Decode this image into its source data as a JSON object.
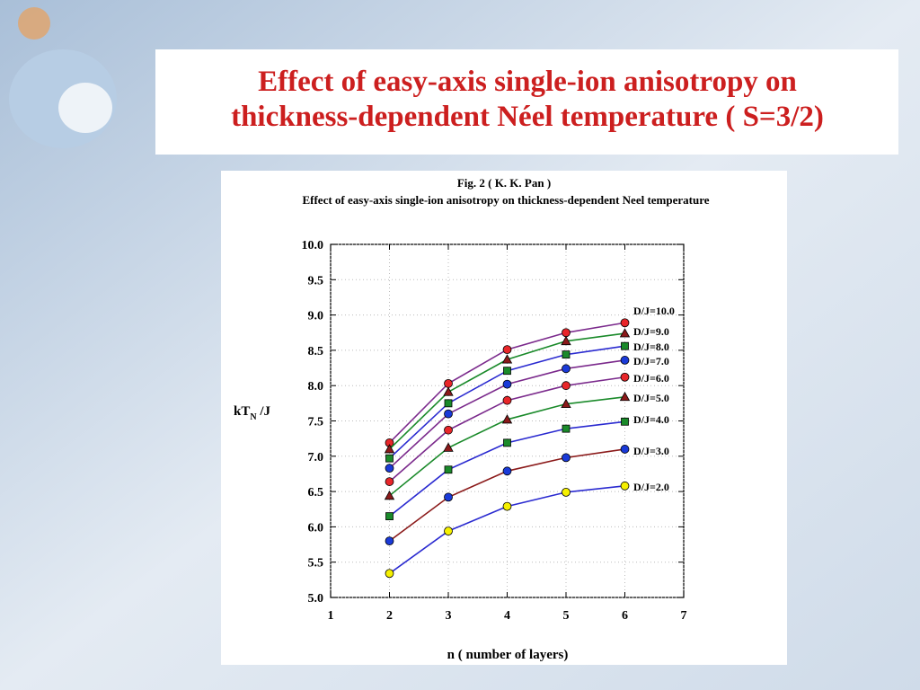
{
  "slide_title": [
    "Effect of easy-axis single-ion anisotropy on",
    "thickness-dependent  Néel temperature ( S=3/2)"
  ],
  "chart_data": {
    "type": "line",
    "title": "Fig. 2 ( K. K. Pan )",
    "subtitle": "Effect of easy-axis single-ion anisotropy on thickness-dependent  Neel  temperature",
    "xlabel": "n ( number of layers)",
    "ylabel": "kT",
    "ylabel_sub": "N",
    "ylabel_suffix": " /J",
    "x": [
      2,
      3,
      4,
      5,
      6
    ],
    "xlim": [
      1,
      7
    ],
    "xticks": [
      1,
      2,
      3,
      4,
      5,
      6,
      7
    ],
    "ylim": [
      5,
      10
    ],
    "yticks": [
      {
        "value": 5,
        "label": "5.0"
      },
      {
        "value": 5.5,
        "label": "5.5"
      },
      {
        "value": 6,
        "label": "6.0"
      },
      {
        "value": 6.5,
        "label": "6.5"
      },
      {
        "value": 7,
        "label": "7.0"
      },
      {
        "value": 7.5,
        "label": "7.5"
      },
      {
        "value": 8,
        "label": "8.0"
      },
      {
        "value": 8.5,
        "label": "8.5"
      },
      {
        "value": 9,
        "label": "9.0"
      },
      {
        "value": 9.5,
        "label": "9.5"
      },
      {
        "value": 10,
        "label": "10.0"
      }
    ],
    "grid": true,
    "series": [
      {
        "name": "D/J=10.0",
        "color": "#e8262a",
        "line_color": "#7b2a8c",
        "marker": "circle",
        "values": [
          7.19,
          8.03,
          8.51,
          8.75,
          8.89
        ]
      },
      {
        "name": "D/J=9.0",
        "color": "#8b1a1a",
        "line_color": "#1a8a2a",
        "marker": "triangle",
        "values": [
          7.1,
          7.91,
          8.37,
          8.63,
          8.74
        ]
      },
      {
        "name": "D/J=8.0",
        "color": "#1a8a2a",
        "line_color": "#2a2ad0",
        "marker": "square",
        "values": [
          6.97,
          7.75,
          8.21,
          8.44,
          8.56
        ]
      },
      {
        "name": "D/J=7.0",
        "color": "#1a3ad8",
        "line_color": "#7b2a8c",
        "marker": "circle",
        "values": [
          6.83,
          7.6,
          8.02,
          8.24,
          8.36
        ]
      },
      {
        "name": "D/J=6.0",
        "color": "#e8262a",
        "line_color": "#7b2a8c",
        "marker": "circle",
        "values": [
          6.64,
          7.37,
          7.79,
          8.0,
          8.12
        ]
      },
      {
        "name": "D/J=5.0",
        "color": "#8b1a1a",
        "line_color": "#1a8a2a",
        "marker": "triangle",
        "values": [
          6.44,
          7.12,
          7.52,
          7.74,
          7.84
        ]
      },
      {
        "name": "D/J=4.0",
        "color": "#1a8a2a",
        "line_color": "#2a2ad0",
        "marker": "square",
        "values": [
          6.15,
          6.81,
          7.19,
          7.39,
          7.49
        ]
      },
      {
        "name": "D/J=3.0",
        "color": "#1a3ad8",
        "line_color": "#8b1a1a",
        "marker": "circle",
        "values": [
          5.8,
          6.42,
          6.79,
          6.98,
          7.1
        ]
      },
      {
        "name": "D/J=2.0",
        "color": "#f5f000",
        "line_color": "#2a2ad0",
        "marker": "circle",
        "values": [
          5.34,
          5.94,
          6.29,
          6.49,
          6.58
        ]
      }
    ]
  }
}
